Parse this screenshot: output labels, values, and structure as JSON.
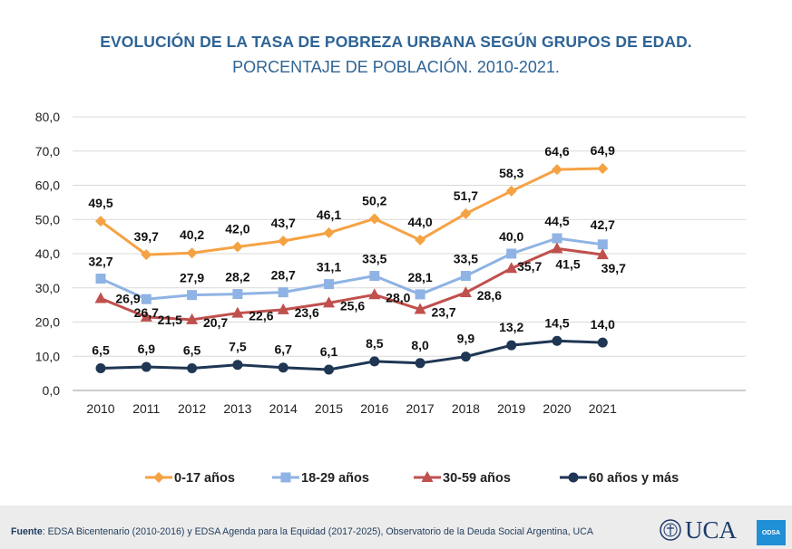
{
  "header": {
    "title": "EVOLUCIÓN DE LA TASA DE POBREZA URBANA SEGÚN GRUPOS DE EDAD.",
    "subtitle": "PORCENTAJE DE POBLACIÓN. 2010-2021."
  },
  "chart_data": {
    "type": "line",
    "title": "EVOLUCIÓN DE LA TASA DE POBREZA URBANA SEGÚN GRUPOS DE EDAD.",
    "subtitle": "PORCENTAJE DE POBLACIÓN. 2010-2021.",
    "xlabel": "",
    "ylabel": "",
    "ylim": [
      0,
      80
    ],
    "yticks": [
      "0,0",
      "10,0",
      "20,0",
      "30,0",
      "40,0",
      "50,0",
      "60,0",
      "70,0",
      "80,0"
    ],
    "grid": true,
    "legend_position": "bottom",
    "categories": [
      "2010",
      "2011",
      "2012",
      "2013",
      "2014",
      "2015",
      "2016",
      "2017",
      "2018",
      "2019",
      "2020",
      "2021"
    ],
    "series": [
      {
        "name": "0-17 años",
        "color": "#f5a243",
        "marker": "diamond",
        "values": [
          49.5,
          39.7,
          40.2,
          42.0,
          43.7,
          46.1,
          50.2,
          44.0,
          51.7,
          58.3,
          64.6,
          64.9
        ],
        "labels": [
          "49,5",
          "39,7",
          "40,2",
          "42,0",
          "43,7",
          "46,1",
          "50,2",
          "44,0",
          "51,7",
          "58,3",
          "64,6",
          "64,9"
        ]
      },
      {
        "name": "18-29 años",
        "color": "#8fb3e4",
        "marker": "square",
        "values": [
          32.7,
          26.7,
          27.9,
          28.2,
          28.7,
          31.1,
          33.5,
          28.1,
          33.5,
          40.0,
          44.5,
          42.7
        ],
        "labels": [
          "32,7",
          "26,7",
          "27,9",
          "28,2",
          "28,7",
          "31,1",
          "33,5",
          "28,1",
          "33,5",
          "40,0",
          "44,5",
          "42,7"
        ]
      },
      {
        "name": "30-59 años",
        "color": "#c0504d",
        "marker": "triangle",
        "values": [
          26.9,
          21.5,
          20.7,
          22.6,
          23.6,
          25.6,
          28.0,
          23.7,
          28.6,
          35.7,
          41.5,
          39.7
        ],
        "labels": [
          "26,9",
          "21,5",
          "20,7",
          "22,6",
          "23,6",
          "25,6",
          "28,0",
          "23,7",
          "28,6",
          "35,7",
          "41,5",
          "39,7"
        ]
      },
      {
        "name": "60 años y más",
        "color": "#1f3654",
        "marker": "circle",
        "values": [
          6.5,
          6.9,
          6.5,
          7.5,
          6.7,
          6.1,
          8.5,
          8.0,
          9.9,
          13.2,
          14.5,
          14.0
        ],
        "labels": [
          "6,5",
          "6,9",
          "6,5",
          "7,5",
          "6,7",
          "6,1",
          "8,5",
          "8,0",
          "9,9",
          "13,2",
          "14,5",
          "14,0"
        ]
      }
    ]
  },
  "footer": {
    "source_label": "Fuente",
    "source_text": ": EDSA Bicentenario (2010-2016) y EDSA Agenda para la Equidad (2017-2025),  Observatorio de la Deuda Social Argentina, UCA",
    "logo_text": "UCA",
    "badge_text": "ODSA"
  }
}
